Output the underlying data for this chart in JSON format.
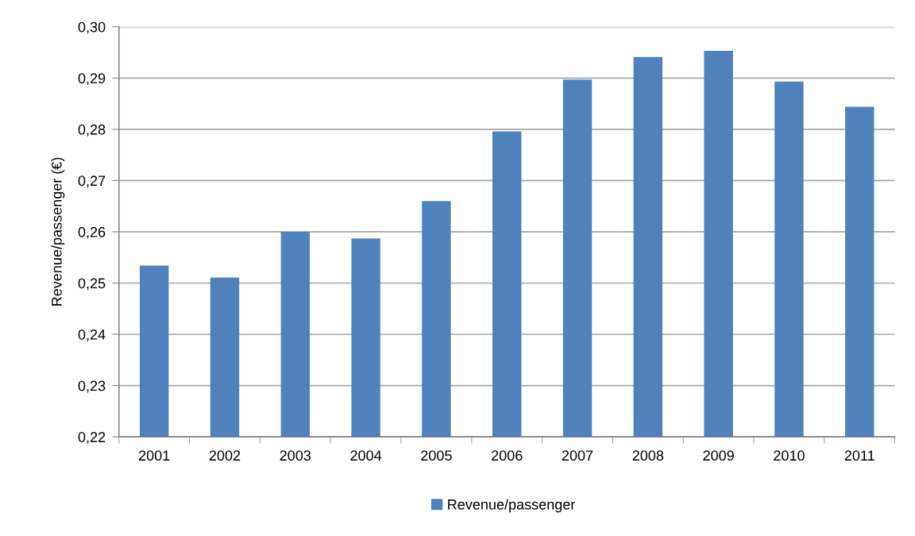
{
  "chart_data": {
    "type": "bar",
    "ylabel": "Revenue/passenger (€)",
    "categories": [
      "2001",
      "2002",
      "2003",
      "2004",
      "2005",
      "2006",
      "2007",
      "2008",
      "2009",
      "2010",
      "2011"
    ],
    "series": [
      {
        "name": "Revenue/passenger",
        "color": "#4f81bd",
        "values": [
          0.2534,
          0.2511,
          0.26,
          0.2587,
          0.266,
          0.2796,
          0.2897,
          0.2941,
          0.2953,
          0.2893,
          0.2844
        ]
      }
    ],
    "ylim": [
      0.22,
      0.3
    ],
    "yticks": [
      {
        "value": 0.22,
        "label": "0,22"
      },
      {
        "value": 0.23,
        "label": "0,23"
      },
      {
        "value": 0.24,
        "label": "0,24"
      },
      {
        "value": 0.25,
        "label": "0,25"
      },
      {
        "value": 0.26,
        "label": "0,26"
      },
      {
        "value": 0.27,
        "label": "0,27"
      },
      {
        "value": 0.28,
        "label": "0,28"
      },
      {
        "value": 0.29,
        "label": "0,29"
      },
      {
        "value": 0.3,
        "label": "0,30"
      }
    ],
    "grid": "y",
    "legend": "bottom"
  }
}
